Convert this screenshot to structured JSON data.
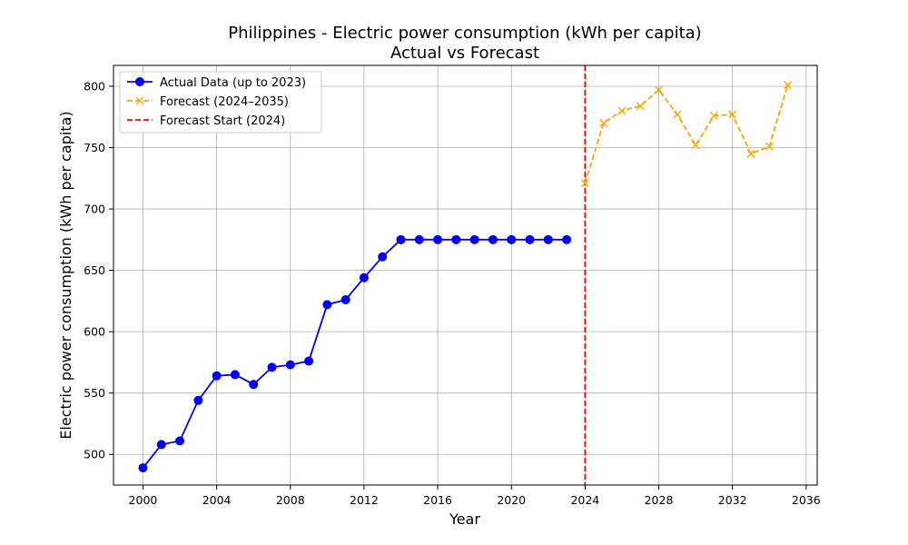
{
  "chart_data": {
    "type": "line",
    "title": "Philippines - Electric power consumption (kWh per capita)",
    "subtitle": "Actual vs Forecast",
    "xlabel": "Year",
    "ylabel": "Electric power consumption (kWh per capita)",
    "xlim": [
      1998.4,
      2036.6
    ],
    "ylim": [
      475,
      817
    ],
    "x_ticks": [
      2000,
      2004,
      2008,
      2012,
      2016,
      2020,
      2024,
      2028,
      2032,
      2036
    ],
    "y_ticks": [
      500,
      550,
      600,
      650,
      700,
      750,
      800
    ],
    "grid": true,
    "legend_position": "top-left",
    "series": [
      {
        "name": "Actual Data (up to 2023)",
        "color": "#0000ff",
        "line_style": "solid",
        "marker": "circle",
        "x": [
          2000,
          2001,
          2002,
          2003,
          2004,
          2005,
          2006,
          2007,
          2008,
          2009,
          2010,
          2011,
          2012,
          2013,
          2014,
          2015,
          2016,
          2017,
          2018,
          2019,
          2020,
          2021,
          2022,
          2023
        ],
        "y": [
          489,
          508,
          511,
          544,
          564,
          565,
          557,
          571,
          573,
          576,
          622,
          626,
          644,
          661,
          675,
          675,
          675,
          675,
          675,
          675,
          675,
          675,
          675,
          675
        ]
      },
      {
        "name": "Forecast (2024–2035)",
        "color": "#ffa500",
        "line_style": "dashed",
        "marker": "x",
        "x": [
          2024,
          2025,
          2026,
          2027,
          2028,
          2029,
          2030,
          2031,
          2032,
          2033,
          2034,
          2035
        ],
        "y": [
          721,
          770,
          780,
          784,
          797,
          777,
          752,
          776,
          777,
          745,
          751,
          801
        ]
      }
    ],
    "vertical_line": {
      "name": "Forecast Start (2024)",
      "x": 2024,
      "color": "#ff0000",
      "line_style": "dashed"
    }
  }
}
